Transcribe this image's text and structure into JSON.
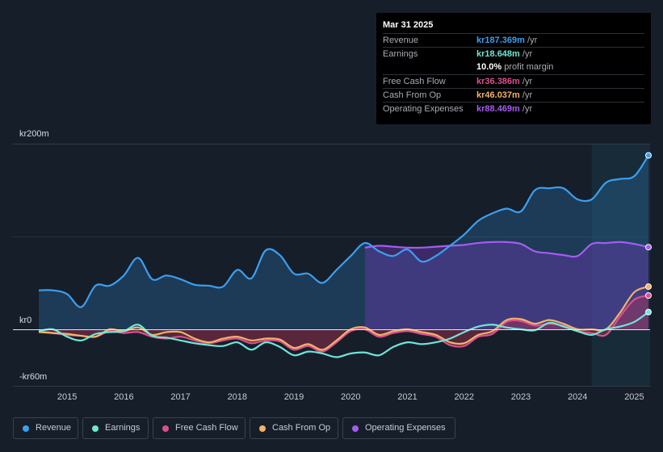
{
  "tooltip": {
    "date": "Mar 31 2025",
    "rows": [
      {
        "label": "Revenue",
        "value": "kr187.369m",
        "unit": " /yr",
        "color": "#3b9ff0"
      },
      {
        "label": "Earnings",
        "value": "kr18.648m",
        "unit": " /yr",
        "color": "#6ee6d6"
      },
      {
        "label": "",
        "value": "10.0%",
        "unit": " profit margin",
        "color": "#ffffff"
      },
      {
        "label": "Free Cash Flow",
        "value": "kr36.386m",
        "unit": " /yr",
        "color": "#dd4f8c"
      },
      {
        "label": "Cash From Op",
        "value": "kr46.037m",
        "unit": " /yr",
        "color": "#f2b36a"
      },
      {
        "label": "Operating Expenses",
        "value": "kr88.469m",
        "unit": " /yr",
        "color": "#a45cf0"
      }
    ]
  },
  "legend": [
    {
      "label": "Revenue",
      "color": "#3b9ff0"
    },
    {
      "label": "Earnings",
      "color": "#6ee6d6"
    },
    {
      "label": "Free Cash Flow",
      "color": "#dd4f8c"
    },
    {
      "label": "Cash From Op",
      "color": "#f2b36a"
    },
    {
      "label": "Operating Expenses",
      "color": "#a45cf0"
    }
  ],
  "chart_data": {
    "type": "line",
    "ylim": [
      -60,
      200
    ],
    "y_tick_labels": [
      "kr200m",
      "kr0",
      "-kr60m"
    ],
    "x_tick_labels": [
      "2015",
      "2016",
      "2017",
      "2018",
      "2019",
      "2020",
      "2021",
      "2022",
      "2023",
      "2024",
      "2025"
    ],
    "xlim": [
      2014.5,
      2025.25
    ],
    "forecast_shade_start": 2024.25,
    "series": [
      {
        "name": "Revenue",
        "color": "#3b9ff0",
        "fill": true,
        "x": [
          2014.5,
          2014.75,
          2015.0,
          2015.25,
          2015.5,
          2015.75,
          2016.0,
          2016.25,
          2016.5,
          2016.75,
          2017.0,
          2017.25,
          2017.5,
          2017.75,
          2018.0,
          2018.25,
          2018.5,
          2018.75,
          2019.0,
          2019.25,
          2019.5,
          2019.75,
          2020.0,
          2020.25,
          2020.5,
          2020.75,
          2021.0,
          2021.25,
          2021.5,
          2021.75,
          2022.0,
          2022.25,
          2022.5,
          2022.75,
          2023.0,
          2023.25,
          2023.5,
          2023.75,
          2024.0,
          2024.25,
          2024.5,
          2024.75,
          2025.0,
          2025.25
        ],
        "values": [
          42,
          42,
          38,
          24,
          47,
          47,
          58,
          77,
          54,
          58,
          54,
          48,
          47,
          46,
          64,
          55,
          85,
          80,
          60,
          60,
          50,
          64,
          79,
          93,
          84,
          79,
          86,
          73,
          79,
          90,
          102,
          117,
          125,
          130,
          127,
          150,
          152,
          152,
          140,
          140,
          158,
          162,
          165,
          187.4
        ]
      },
      {
        "name": "Earnings",
        "color": "#6ee6d6",
        "fill": false,
        "x": [
          2014.5,
          2014.75,
          2015.0,
          2015.25,
          2015.5,
          2015.75,
          2016.0,
          2016.25,
          2016.5,
          2016.75,
          2017.0,
          2017.25,
          2017.5,
          2017.75,
          2018.0,
          2018.25,
          2018.5,
          2018.75,
          2019.0,
          2019.25,
          2019.5,
          2019.75,
          2020.0,
          2020.25,
          2020.5,
          2020.75,
          2021.0,
          2021.25,
          2021.5,
          2021.75,
          2022.0,
          2022.25,
          2022.5,
          2022.75,
          2023.0,
          2023.25,
          2023.5,
          2023.75,
          2024.0,
          2024.25,
          2024.5,
          2024.75,
          2025.0,
          2025.25
        ],
        "values": [
          -2,
          0,
          -8,
          -12,
          -5,
          -3,
          -2,
          5,
          -7,
          -9,
          -12,
          -15,
          -17,
          -18,
          -14,
          -22,
          -14,
          -19,
          -28,
          -24,
          -26,
          -30,
          -26,
          -25,
          -28,
          -19,
          -14,
          -16,
          -14,
          -10,
          -3,
          3,
          5,
          2,
          0,
          -1,
          7,
          3,
          -2,
          -6,
          0,
          3,
          8,
          18.6
        ]
      },
      {
        "name": "Free Cash Flow",
        "color": "#dd4f8c",
        "fill": true,
        "x": [
          2014.5,
          2014.75,
          2015.0,
          2015.25,
          2015.5,
          2015.75,
          2016.0,
          2016.25,
          2016.5,
          2016.75,
          2017.0,
          2017.25,
          2017.5,
          2017.75,
          2018.0,
          2018.25,
          2018.5,
          2018.75,
          2019.0,
          2019.25,
          2019.5,
          2019.75,
          2020.0,
          2020.25,
          2020.5,
          2020.75,
          2021.0,
          2021.25,
          2021.5,
          2021.75,
          2022.0,
          2022.25,
          2022.5,
          2022.75,
          2023.0,
          2023.25,
          2023.5,
          2023.75,
          2024.0,
          2024.25,
          2024.5,
          2024.75,
          2025.0,
          2025.25
        ],
        "values": [
          -2,
          -4,
          -6,
          -7,
          -8,
          -2,
          -4,
          -3,
          -8,
          -10,
          -8,
          -12,
          -15,
          -12,
          -10,
          -15,
          -12,
          -13,
          -22,
          -18,
          -24,
          -14,
          -2,
          0,
          -8,
          -4,
          -2,
          -5,
          -8,
          -17,
          -18,
          -8,
          -5,
          8,
          9,
          4,
          6,
          4,
          -2,
          -4,
          -6,
          14,
          32,
          36.4
        ]
      },
      {
        "name": "Cash From Op",
        "color": "#f2b36a",
        "fill": false,
        "x": [
          2014.5,
          2014.75,
          2015.0,
          2015.25,
          2015.5,
          2015.75,
          2016.0,
          2016.25,
          2016.5,
          2016.75,
          2017.0,
          2017.25,
          2017.5,
          2017.75,
          2018.0,
          2018.25,
          2018.5,
          2018.75,
          2019.0,
          2019.25,
          2019.5,
          2019.75,
          2020.0,
          2020.25,
          2020.5,
          2020.75,
          2021.0,
          2021.25,
          2021.5,
          2021.75,
          2022.0,
          2022.25,
          2022.5,
          2022.75,
          2023.0,
          2023.25,
          2023.5,
          2023.75,
          2024.0,
          2024.25,
          2024.5,
          2024.75,
          2025.0,
          2025.25
        ],
        "values": [
          -3,
          -4,
          -5,
          -7,
          -8,
          0,
          -2,
          2,
          -6,
          -3,
          -3,
          -10,
          -14,
          -10,
          -8,
          -12,
          -10,
          -11,
          -20,
          -16,
          -22,
          -12,
          0,
          2,
          -6,
          -2,
          0,
          -3,
          -6,
          -14,
          -15,
          -6,
          -2,
          10,
          11,
          6,
          10,
          6,
          0,
          0,
          0,
          18,
          40,
          46.0
        ]
      },
      {
        "name": "Operating Expenses",
        "color": "#a45cf0",
        "fill": true,
        "x": [
          2020.25,
          2020.5,
          2020.75,
          2021.0,
          2021.25,
          2021.5,
          2021.75,
          2022.0,
          2022.25,
          2022.5,
          2022.75,
          2023.0,
          2023.25,
          2023.5,
          2023.75,
          2024.0,
          2024.25,
          2024.5,
          2024.75,
          2025.0,
          2025.25
        ],
        "values": [
          88,
          90,
          89,
          88,
          88,
          89,
          90,
          91,
          93,
          94,
          94,
          92,
          84,
          82,
          80,
          79,
          92,
          93,
          94,
          92,
          88.5
        ]
      }
    ]
  }
}
